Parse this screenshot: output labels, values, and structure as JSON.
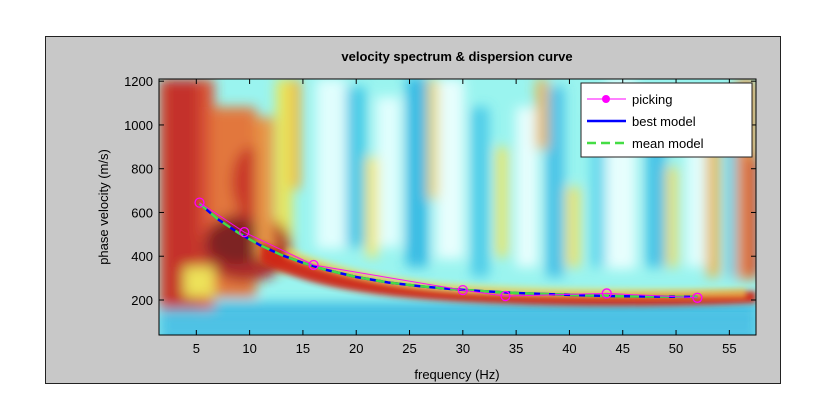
{
  "chart_data": {
    "type": "heatmap",
    "title": "velocity spectrum & dispersion curve",
    "xlabel": "frequency (Hz)",
    "ylabel": "phase velocity (m/s)",
    "xlim": [
      1.5,
      57.5
    ],
    "ylim": [
      40,
      1210
    ],
    "x_ticks": [
      5,
      10,
      15,
      20,
      25,
      30,
      35,
      40,
      45,
      50,
      55
    ],
    "y_ticks": [
      200,
      400,
      600,
      800,
      1000,
      1200
    ],
    "grid": false,
    "legend_position": "top-right",
    "colormap": "jet",
    "series": [
      {
        "name": "picking",
        "style": "magenta line with circle markers",
        "color": "#ff00ff",
        "x": [
          5.3,
          9.5,
          16,
          30,
          34,
          43.5,
          52
        ],
        "y": [
          645,
          510,
          360,
          245,
          218,
          230,
          210
        ]
      },
      {
        "name": "best model",
        "style": "solid",
        "color": "#0000ff",
        "x": [
          5.3,
          7,
          9,
          11,
          13,
          15,
          17,
          20,
          23,
          26,
          29,
          32,
          35,
          38,
          41,
          44,
          47,
          50,
          52
        ],
        "y": [
          640,
          570,
          505,
          450,
          405,
          370,
          340,
          305,
          280,
          263,
          250,
          240,
          232,
          227,
          222,
          218,
          216,
          215,
          214
        ]
      },
      {
        "name": "mean model",
        "style": "dashed",
        "color": "#44dd44",
        "x": [
          5.3,
          7,
          9,
          11,
          13,
          15,
          17,
          20,
          23,
          26,
          29,
          32,
          35,
          38,
          41,
          44,
          47,
          50,
          52
        ],
        "y": [
          640,
          570,
          505,
          450,
          405,
          370,
          340,
          305,
          280,
          263,
          250,
          240,
          232,
          227,
          222,
          218,
          216,
          215,
          214
        ]
      }
    ]
  }
}
